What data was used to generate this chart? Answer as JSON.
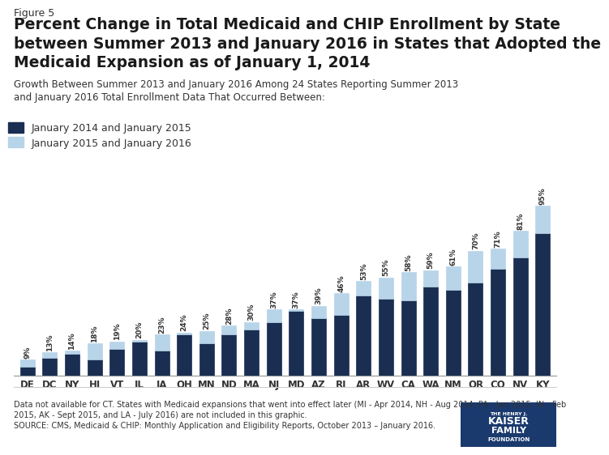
{
  "states": [
    "DE",
    "DC",
    "NY",
    "HI",
    "VT",
    "IL",
    "IA",
    "OH",
    "MN",
    "ND",
    "MA",
    "NJ",
    "MD",
    "AZ",
    "RI",
    "AR",
    "WV",
    "CA",
    "WA",
    "NM",
    "OR",
    "CO",
    "NV",
    "KY"
  ],
  "total": [
    9,
    13,
    14,
    18,
    19,
    20,
    23,
    24,
    25,
    28,
    30,
    37,
    37,
    39,
    46,
    53,
    55,
    58,
    59,
    61,
    70,
    71,
    81,
    95
  ],
  "dark": [
    5,
    10,
    12,
    9,
    15,
    19,
    14,
    23,
    18,
    23,
    26,
    30,
    36,
    32,
    34,
    45,
    43,
    42,
    50,
    48,
    52,
    60,
    66,
    80
  ],
  "light": [
    4,
    3,
    2,
    9,
    4,
    1,
    9,
    1,
    7,
    5,
    4,
    7,
    1,
    7,
    12,
    8,
    12,
    16,
    9,
    13,
    18,
    11,
    15,
    15
  ],
  "dark_color": "#1a2e52",
  "light_color": "#b8d4e8",
  "bar_edge_color": "#1a2e52",
  "title_fig": "Figure 5",
  "title_main": "Percent Change in Total Medicaid and CHIP Enrollment by State\nbetween Summer 2013 and January 2016 in States that Adopted the\nMedicaid Expansion as of January 1, 2014",
  "subtitle": "Growth Between Summer 2013 and January 2016 Among 24 States Reporting Summer 2013\nand January 2016 Total Enrollment Data That Occurred Between:",
  "legend_dark": "January 2014 and January 2015",
  "legend_light": "January 2015 and January 2016",
  "footnote": "Data not available for CT. States with Medicaid expansions that went into effect later (MI - Apr 2014, NH - Aug 2014, PA - Jan 2015, IN - Feb\n2015, AK - Sept 2015, and LA - July 2016) are not included in this graphic.\nSOURCE: CMS, Medicaid & CHIP: Monthly Application and Eligibility Reports, October 2013 – January 2016.",
  "background_color": "#ffffff",
  "ylim": [
    0,
    105
  ]
}
